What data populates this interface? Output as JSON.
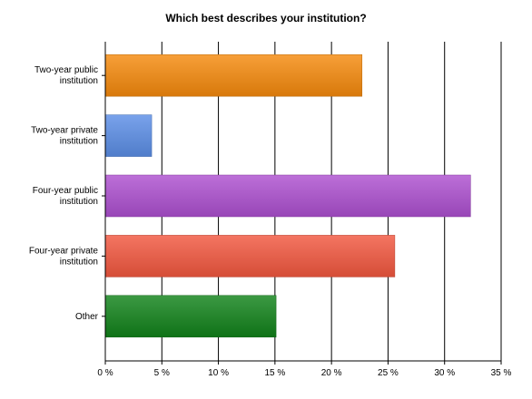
{
  "chart_data": {
    "type": "bar",
    "orientation": "horizontal",
    "title": "Which best describes your institution?",
    "categories": [
      [
        "Two-year public",
        "institution"
      ],
      [
        "Two-year private",
        "institution"
      ],
      [
        "Four-year public",
        "institution"
      ],
      [
        "Four-year private",
        "institution"
      ],
      [
        "Other"
      ]
    ],
    "values": [
      22.7,
      4.1,
      32.3,
      25.6,
      15.1
    ],
    "bar_colors": [
      "#f58a0c",
      "#5b8ee6",
      "#ad4fd0",
      "#f2573f",
      "#11821a"
    ],
    "xlim": [
      0,
      35
    ],
    "x_ticks": [
      0,
      5,
      10,
      15,
      20,
      25,
      30,
      35
    ],
    "x_tick_labels": [
      "0 %",
      "5 %",
      "10 %",
      "15 %",
      "20 %",
      "25 %",
      "30 %",
      "35 %"
    ],
    "grid": "vertical",
    "legend": "none"
  }
}
